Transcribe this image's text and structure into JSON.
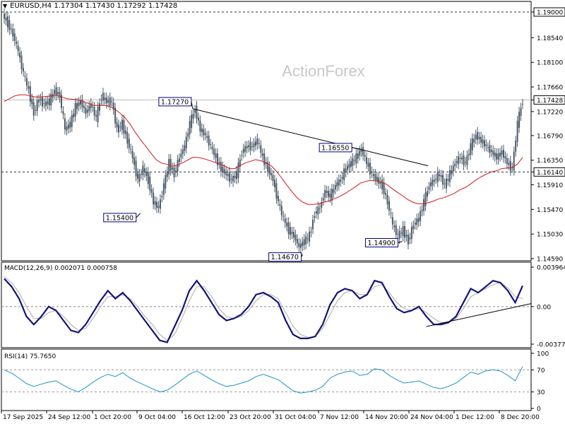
{
  "header": {
    "symbol_line": "EURUSD,H4  1.17304 1.17430 1.17292 1.17428"
  },
  "watermark": "ActionForex",
  "chart_data": [
    {
      "type": "candlestick",
      "panel": "price",
      "y_ticks": [
        "1.19000",
        "1.18540",
        "1.18100",
        "1.17660",
        "1.17428",
        "1.17220",
        "1.16790",
        "1.16350",
        "1.16140",
        "1.15910",
        "1.15470",
        "1.15030",
        "1.14590"
      ],
      "ylim": [
        1.1459,
        1.19
      ],
      "highlighted_levels": [
        {
          "value": 1.19,
          "label": "1.19000",
          "style": "dashed",
          "color": "#333333"
        },
        {
          "value": 1.17428,
          "label": "1.17428",
          "style": "solid",
          "color": "#bbbbbb"
        },
        {
          "value": 1.1614,
          "label": "1.16140",
          "style": "dashed",
          "color": "#333333"
        }
      ],
      "annotations": [
        {
          "label": "1.17270",
          "value": 1.1727
        },
        {
          "label": "1.16550",
          "value": 1.1655
        },
        {
          "label": "1.15400",
          "value": 1.154
        },
        {
          "label": "1.14670",
          "value": 1.1467
        },
        {
          "label": "1.14900",
          "value": 1.149
        }
      ],
      "trendline": {
        "from": 1.1727,
        "to": 1.1625
      },
      "series": [
        {
          "name": "",
          "kind": "close",
          "values": [
            1.188,
            1.186,
            1.183,
            1.179,
            1.176,
            1.172,
            1.1745,
            1.1735,
            1.174,
            1.176,
            1.175,
            1.169,
            1.17,
            1.173,
            1.174,
            1.172,
            1.1735,
            1.171,
            1.175,
            1.174,
            1.174,
            1.169,
            1.17,
            1.167,
            1.164,
            1.16,
            1.162,
            1.16,
            1.156,
            1.155,
            1.159,
            1.163,
            1.161,
            1.164,
            1.166,
            1.17,
            1.1727,
            1.169,
            1.168,
            1.166,
            1.164,
            1.162,
            1.161,
            1.16,
            1.161,
            1.165,
            1.166,
            1.166,
            1.167,
            1.164,
            1.162,
            1.16,
            1.156,
            1.153,
            1.151,
            1.15,
            1.148,
            1.149,
            1.15,
            1.154,
            1.155,
            1.158,
            1.157,
            1.159,
            1.16,
            1.162,
            1.163,
            1.164,
            1.1655,
            1.163,
            1.161,
            1.16,
            1.159,
            1.156,
            1.152,
            1.15,
            1.151,
            1.149,
            1.152,
            1.153,
            1.156,
            1.159,
            1.16,
            1.161,
            1.159,
            1.161,
            1.163,
            1.164,
            1.163,
            1.166,
            1.168,
            1.167,
            1.166,
            1.165,
            1.164,
            1.165,
            1.163,
            1.162,
            1.17,
            1.1743
          ]
        },
        {
          "name": "",
          "kind": "moving-average",
          "values": [
            1.174,
            1.1745,
            1.175,
            1.1752,
            1.1752,
            1.175,
            1.1748,
            1.1748,
            1.1749,
            1.175,
            1.1751,
            1.1748,
            1.1745,
            1.1744,
            1.1743,
            1.174,
            1.1737,
            1.1733,
            1.1733,
            1.1733,
            1.1732,
            1.1727,
            1.172,
            1.1712,
            1.17,
            1.1685,
            1.1672,
            1.166,
            1.1648,
            1.1636,
            1.163,
            1.1628,
            1.1624,
            1.1626,
            1.163,
            1.1635,
            1.164,
            1.164,
            1.1638,
            1.1635,
            1.1632,
            1.1628,
            1.1625,
            1.162,
            1.162,
            1.1625,
            1.163,
            1.1633,
            1.1636,
            1.1634,
            1.163,
            1.1625,
            1.1615,
            1.1603,
            1.159,
            1.1578,
            1.1567,
            1.156,
            1.1556,
            1.1556,
            1.1557,
            1.156,
            1.1562,
            1.1566,
            1.157,
            1.1575,
            1.1581,
            1.1587,
            1.1594,
            1.1597,
            1.1599,
            1.1598,
            1.1596,
            1.1592,
            1.1585,
            1.1578,
            1.1572,
            1.1565,
            1.156,
            1.1557,
            1.1557,
            1.1559,
            1.1562,
            1.1566,
            1.1568,
            1.1572,
            1.1576,
            1.1582,
            1.1586,
            1.1592,
            1.1599,
            1.1605,
            1.161,
            1.1614,
            1.1616,
            1.162,
            1.1621,
            1.1622,
            1.1628,
            1.164
          ]
        }
      ]
    },
    {
      "type": "line",
      "panel": "macd",
      "title": "MACD(12,26,9) 0.002071 0.000758",
      "y_ticks": [
        "0.003964",
        "0.00",
        "-0.003774"
      ],
      "ylim": [
        -0.003774,
        0.003964
      ],
      "highlighted_levels": [
        {
          "value": 0.0,
          "label": "0.00"
        }
      ],
      "trendline": {
        "from": -0.002,
        "to": 0.0003
      },
      "series": [
        {
          "name": "",
          "kind": "macd",
          "values": [
            0.0028,
            0.002,
            0.0008,
            -0.001,
            -0.0018,
            -0.001,
            0.0,
            -0.0004,
            -0.0014,
            -0.0024,
            -0.0026,
            -0.0018,
            -0.0006,
            0.0006,
            0.0016,
            0.0008,
            0.0014,
            0.0006,
            -0.0004,
            -0.0014,
            -0.0024,
            -0.0034,
            -0.0036,
            -0.002,
            -0.0004,
            0.0016,
            0.0026,
            0.0016,
            0.0004,
            -0.0008,
            -0.0014,
            -0.0012,
            -0.0008,
            0.0,
            0.0012,
            0.0014,
            0.001,
            0.0004,
            -0.0014,
            -0.0028,
            -0.0032,
            -0.0032,
            -0.003,
            -0.0018,
            0.0002,
            0.0014,
            0.0018,
            0.0016,
            0.0008,
            0.0012,
            0.0026,
            0.0024,
            0.001,
            -0.0002,
            -0.0006,
            -0.0004,
            0.0,
            -0.001,
            -0.0018,
            -0.0018,
            -0.0016,
            -0.001,
            0.0004,
            0.0018,
            0.0014,
            0.002,
            0.0026,
            0.0024,
            0.0016,
            0.0004,
            0.0021
          ]
        },
        {
          "name": "",
          "kind": "signal",
          "values": [
            0.003,
            0.0024,
            0.0014,
            0.0,
            -0.0012,
            -0.0012,
            -0.0006,
            -0.0004,
            -0.001,
            -0.0018,
            -0.0024,
            -0.0022,
            -0.0012,
            0.0,
            0.001,
            0.001,
            0.0012,
            0.0008,
            0.0,
            -0.001,
            -0.0018,
            -0.0028,
            -0.0034,
            -0.0028,
            -0.0012,
            0.0006,
            0.002,
            0.002,
            0.001,
            -0.0002,
            -0.001,
            -0.0012,
            -0.001,
            -0.0004,
            0.0006,
            0.0012,
            0.0012,
            0.0008,
            -0.0006,
            -0.002,
            -0.0028,
            -0.0031,
            -0.003,
            -0.0022,
            -0.0008,
            0.0006,
            0.0014,
            0.0016,
            0.0012,
            0.0012,
            0.002,
            0.0022,
            0.0014,
            0.0004,
            -0.0002,
            -0.0004,
            -0.0002,
            -0.0006,
            -0.0012,
            -0.0016,
            -0.0016,
            -0.0012,
            -0.0002,
            0.001,
            0.0014,
            0.0018,
            0.0022,
            0.0024,
            0.0019,
            0.001,
            0.0008
          ]
        }
      ]
    },
    {
      "type": "line",
      "panel": "rsi",
      "title": "RSI(14) 75.7650",
      "y_ticks": [
        "100",
        "70",
        "30",
        "0"
      ],
      "ylim": [
        0,
        100
      ],
      "highlighted_levels": [
        {
          "value": 70,
          "label": "70"
        },
        {
          "value": 30,
          "label": "30"
        }
      ],
      "series": [
        {
          "name": "",
          "kind": "rsi",
          "values": [
            70,
            64,
            55,
            45,
            40,
            44,
            48,
            50,
            42,
            35,
            30,
            38,
            48,
            56,
            62,
            58,
            65,
            55,
            48,
            42,
            36,
            30,
            33,
            42,
            52,
            62,
            68,
            60,
            52,
            45,
            40,
            42,
            46,
            50,
            58,
            62,
            57,
            52,
            42,
            32,
            28,
            30,
            33,
            40,
            55,
            62,
            66,
            68,
            60,
            62,
            72,
            70,
            60,
            52,
            46,
            48,
            50,
            44,
            38,
            36,
            40,
            46,
            56,
            66,
            62,
            68,
            70,
            68,
            60,
            50,
            76
          ]
        }
      ]
    }
  ],
  "x_axis": {
    "labels": [
      "17 Sep 2025",
      "24 Sep 12:00",
      "1 Oct 20:00",
      "9 Oct 04:00",
      "16 Oct 12:00",
      "23 Oct 20:00",
      "31 Oct 04:00",
      "7 Nov 12:00",
      "14 Nov 20:00",
      "24 Nov 04:00",
      "1 Dec 12:00",
      "8 Dec 20:00"
    ]
  },
  "colors": {
    "candle": "#4a5a68",
    "moving_average": "#d01818",
    "macd": "#13137a",
    "signal": "#aaaaaa",
    "rsi": "#1e90d0",
    "label_border": "#000080",
    "last_price_box": "#000000"
  }
}
